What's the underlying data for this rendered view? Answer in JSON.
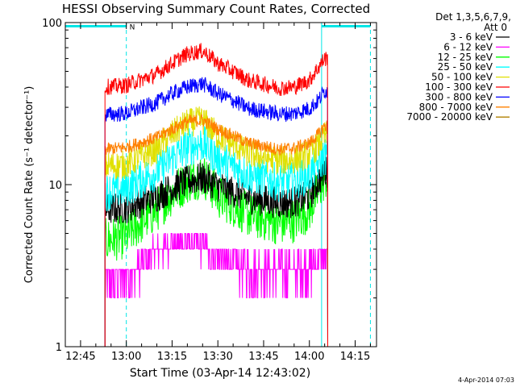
{
  "chart_data": {
    "type": "line",
    "title": "HESSI Observing Summary Count Rates, Corrected",
    "xlabel": "Start Time (03-Apr-14 12:43:02)",
    "ylabel": "Corrected Count Rate (s⁻¹ detector⁻¹)",
    "y_scale": "log",
    "ylim": [
      1,
      100
    ],
    "xlim": [
      "12:40",
      "14:22"
    ],
    "x_ticks": [
      "12:45",
      "13:00",
      "13:15",
      "13:30",
      "13:45",
      "14:00",
      "14:15"
    ],
    "y_ticks": [
      "1",
      "10",
      "100"
    ],
    "legend_header": [
      "Det 1,3,5,6,7,9,",
      "Att 0"
    ],
    "legend_position": "right",
    "timestamp": "4-Apr-2014 07:03",
    "data_start": "12:53",
    "data_end": "14:06",
    "annotations": {
      "flag_label": "N",
      "flag_level": 95,
      "flag_color": "#00e6e6",
      "flag_segments": [
        [
          "12:40",
          "13:00"
        ],
        [
          "14:04",
          "14:20"
        ]
      ],
      "vertical_lines": [
        {
          "time": "12:40",
          "style": "solid"
        },
        {
          "time": "13:00",
          "style": "dashed"
        },
        {
          "time": "14:04",
          "style": "solid"
        },
        {
          "time": "14:20",
          "style": "dashed"
        }
      ]
    },
    "series": [
      {
        "name": "3 - 6 keV",
        "color": "#000000",
        "x": [
          "12:53",
          "13:00",
          "13:10",
          "13:15",
          "13:20",
          "13:25",
          "13:30",
          "13:40",
          "13:50",
          "13:55",
          "14:00",
          "14:03",
          "14:05"
        ],
        "y": [
          7.0,
          7.2,
          8.5,
          9.5,
          10.5,
          11.0,
          9.8,
          8.3,
          7.7,
          7.8,
          8.5,
          10.5,
          12.0
        ]
      },
      {
        "name": "6 - 12 keV",
        "color": "#ff00ff",
        "x": [
          "12:53",
          "13:00",
          "13:05",
          "13:10",
          "13:15",
          "13:20",
          "13:25",
          "13:30",
          "13:40",
          "13:50",
          "14:00",
          "14:05"
        ],
        "y": [
          2.7,
          2.7,
          3.2,
          4.0,
          4.2,
          4.5,
          4.2,
          3.6,
          3.0,
          3.0,
          3.1,
          3.6
        ]
      },
      {
        "name": "12 - 25 keV",
        "color": "#00ff00",
        "x": [
          "12:53",
          "13:00",
          "13:10",
          "13:15",
          "13:20",
          "13:25",
          "13:30",
          "13:40",
          "13:50",
          "13:55",
          "14:00",
          "14:03",
          "14:05"
        ],
        "y": [
          4.5,
          4.8,
          7.0,
          8.8,
          10.5,
          11.5,
          8.5,
          6.5,
          5.8,
          6.0,
          7.0,
          9.0,
          11.0
        ]
      },
      {
        "name": "25 - 50 keV",
        "color": "#00ffff",
        "x": [
          "12:53",
          "13:00",
          "13:10",
          "13:15",
          "13:20",
          "13:25",
          "13:30",
          "13:40",
          "13:50",
          "13:55",
          "14:00",
          "14:03",
          "14:05"
        ],
        "y": [
          9.0,
          9.5,
          12.0,
          14.5,
          17.0,
          18.0,
          14.5,
          11.5,
          10.3,
          10.5,
          11.5,
          13.5,
          15.0
        ]
      },
      {
        "name": "50 - 100 keV",
        "color": "#e0e000",
        "x": [
          "12:53",
          "13:00",
          "13:10",
          "13:15",
          "13:20",
          "13:25",
          "13:30",
          "13:40",
          "13:50",
          "13:55",
          "14:00",
          "14:03",
          "14:05"
        ],
        "y": [
          13.0,
          13.3,
          16.5,
          20.5,
          24.0,
          25.0,
          20.0,
          15.5,
          14.0,
          14.3,
          15.5,
          17.5,
          20.0
        ]
      },
      {
        "name": "100 - 300 keV",
        "color": "#ff0000",
        "x": [
          "12:53",
          "13:00",
          "13:10",
          "13:15",
          "13:20",
          "13:25",
          "13:30",
          "13:40",
          "13:50",
          "13:55",
          "14:00",
          "14:03",
          "14:05"
        ],
        "y": [
          40.0,
          41.0,
          48.0,
          56.0,
          64.0,
          67.0,
          56.0,
          44.0,
          39.5,
          40.0,
          44.0,
          53.0,
          60.0
        ]
      },
      {
        "name": "300 - 800 keV",
        "color": "#0000ff",
        "x": [
          "12:53",
          "13:00",
          "13:10",
          "13:15",
          "13:20",
          "13:25",
          "13:30",
          "13:40",
          "13:50",
          "13:55",
          "14:00",
          "14:03",
          "14:05"
        ],
        "y": [
          27.0,
          27.5,
          32.0,
          36.5,
          40.0,
          42.0,
          36.5,
          29.5,
          27.3,
          27.5,
          29.5,
          33.0,
          38.0
        ]
      },
      {
        "name": "800 - 7000 keV",
        "color": "#ff8000",
        "x": [
          "12:53",
          "13:00",
          "13:10",
          "13:15",
          "13:20",
          "13:25",
          "13:30",
          "13:40",
          "13:50",
          "13:55",
          "14:00",
          "14:03",
          "14:05"
        ],
        "y": [
          16.5,
          17.0,
          19.5,
          22.0,
          24.5,
          25.0,
          22.0,
          18.0,
          16.5,
          16.8,
          18.0,
          20.5,
          23.0
        ]
      },
      {
        "name": "7000 - 20000 keV",
        "color": "#b08000",
        "x": [
          "12:53",
          "14:06"
        ],
        "y": [
          null,
          null
        ]
      }
    ]
  }
}
